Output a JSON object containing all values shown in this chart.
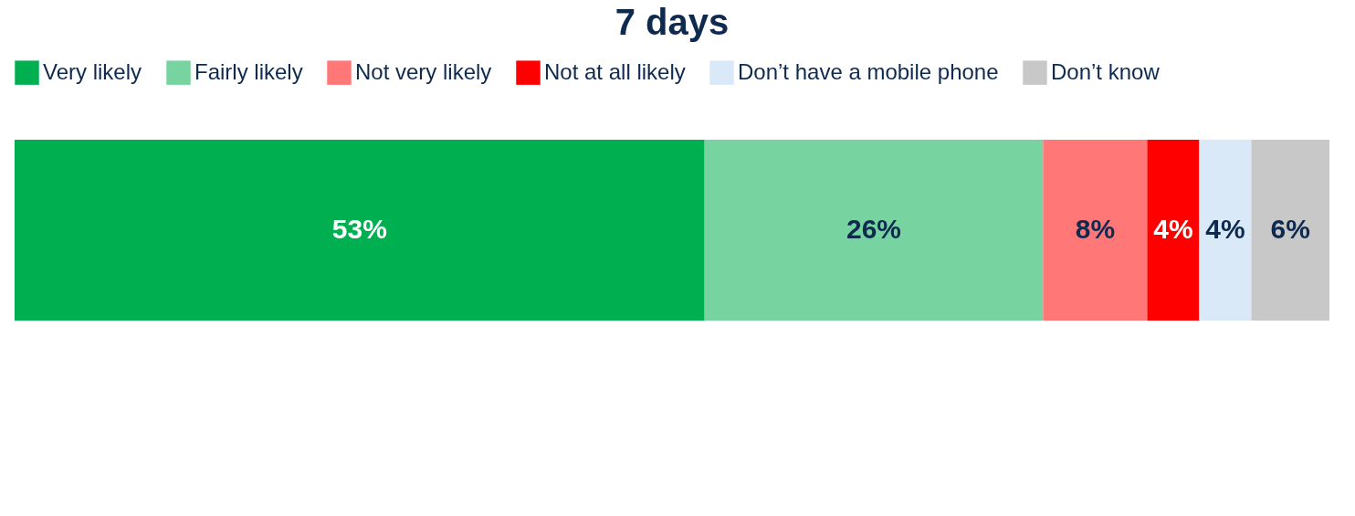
{
  "chart_data": {
    "type": "bar",
    "orientation": "horizontal",
    "stacked": true,
    "title": "7 days",
    "categories": [
      null
    ],
    "legend": "top",
    "series": [
      {
        "name": "Very likely",
        "color": "#00b050",
        "values": [
          53
        ],
        "value_labels": [
          "53%"
        ]
      },
      {
        "name": "Fairly likely",
        "color": "#77d3a0",
        "values": [
          26
        ],
        "value_labels": [
          "26%"
        ]
      },
      {
        "name": "Not very likely",
        "color": "#ff7777",
        "values": [
          8
        ],
        "value_labels": [
          "8%"
        ]
      },
      {
        "name": "Not at all likely",
        "color": "#ff0000",
        "values": [
          4
        ],
        "value_labels": [
          "4%"
        ]
      },
      {
        "name": "Don’t have a mobile phone",
        "color": "#dae9f8",
        "values": [
          4
        ],
        "value_labels": [
          "4%"
        ]
      },
      {
        "name": "Don’t know",
        "color": "#c8c8c8",
        "values": [
          6
        ],
        "value_labels": [
          "6%"
        ]
      }
    ]
  }
}
